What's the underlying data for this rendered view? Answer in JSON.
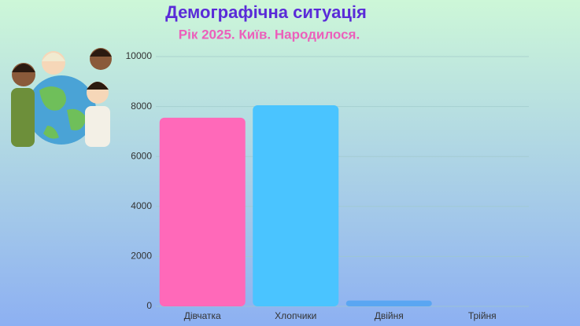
{
  "chart_data": {
    "type": "bar",
    "title": "Демографічна ситуація",
    "subtitle": "Рік 2025. Київ. Народилося.",
    "categories": [
      "Дівчатка",
      "Хлопчики",
      "Двійня",
      "Трійня"
    ],
    "values": [
      7550,
      8050,
      230,
      0
    ],
    "colors": [
      "#ff69b9",
      "#4ac4ff",
      "#5aa6f2",
      "#7aa8ee"
    ],
    "ylim": [
      0,
      10000
    ],
    "yticks": [
      0,
      2000,
      4000,
      6000,
      8000,
      10000
    ],
    "grid": true
  }
}
